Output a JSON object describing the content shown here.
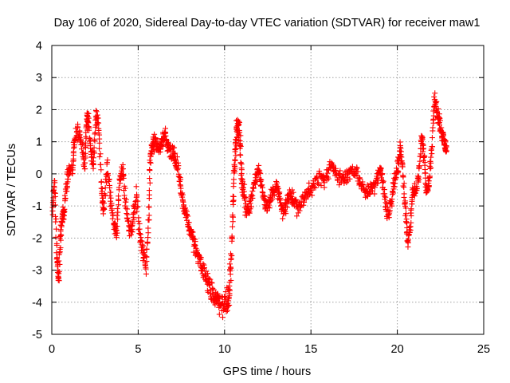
{
  "chart_data": {
    "type": "scatter",
    "title": "Day 106 of 2020, Sidereal Day-to-day VTEC variation (SDTVAR) for receiver maw1",
    "xlabel": "GPS time / hours",
    "ylabel": "SDTVAR / TECUs",
    "xlim": [
      0,
      25
    ],
    "ylim": [
      -5,
      4
    ],
    "xticks": [
      "0",
      "5",
      "10",
      "15",
      "20",
      "25"
    ],
    "yticks": [
      "-5",
      "-4",
      "-3",
      "-2",
      "-1",
      "0",
      "1",
      "2",
      "3",
      "4"
    ],
    "grid": true,
    "marker": "+",
    "color": "#ff0000",
    "series": [
      {
        "name": "SDTVAR",
        "trend": [
          [
            0.05,
            -1.2
          ],
          [
            0.15,
            -0.2
          ],
          [
            0.3,
            -2.6
          ],
          [
            0.4,
            -3.3
          ],
          [
            0.5,
            -2.0
          ],
          [
            0.6,
            -1.3
          ],
          [
            0.7,
            -1.2
          ],
          [
            0.85,
            -0.4
          ],
          [
            1.0,
            0.2
          ],
          [
            1.2,
            0.1
          ],
          [
            1.3,
            1.0
          ],
          [
            1.5,
            1.4
          ],
          [
            1.7,
            1.0
          ],
          [
            1.9,
            0.2
          ],
          [
            2.0,
            1.5
          ],
          [
            2.1,
            1.8
          ],
          [
            2.25,
            0.8
          ],
          [
            2.4,
            0.3
          ],
          [
            2.55,
            1.8
          ],
          [
            2.7,
            1.5
          ],
          [
            2.9,
            -0.5
          ],
          [
            3.0,
            -1.2
          ],
          [
            3.2,
            0.3
          ],
          [
            3.4,
            -0.8
          ],
          [
            3.6,
            -1.5
          ],
          [
            3.75,
            -1.9
          ],
          [
            3.9,
            -0.3
          ],
          [
            4.1,
            0.2
          ],
          [
            4.3,
            -1.0
          ],
          [
            4.5,
            -1.8
          ],
          [
            4.7,
            -1.5
          ],
          [
            4.9,
            -0.6
          ],
          [
            5.1,
            -2.0
          ],
          [
            5.3,
            -2.5
          ],
          [
            5.45,
            -2.9
          ],
          [
            5.6,
            -1.5
          ],
          [
            5.7,
            0.5
          ],
          [
            5.85,
            0.9
          ],
          [
            6.0,
            1.0
          ],
          [
            6.2,
            0.7
          ],
          [
            6.4,
            1.0
          ],
          [
            6.55,
            1.3
          ],
          [
            6.7,
            0.8
          ],
          [
            6.9,
            0.7
          ],
          [
            7.1,
            0.5
          ],
          [
            7.3,
            0.2
          ],
          [
            7.5,
            -0.6
          ],
          [
            7.7,
            -1.2
          ],
          [
            7.9,
            -1.5
          ],
          [
            8.1,
            -1.9
          ],
          [
            8.3,
            -2.3
          ],
          [
            8.5,
            -2.6
          ],
          [
            8.7,
            -2.9
          ],
          [
            8.9,
            -3.2
          ],
          [
            9.1,
            -3.5
          ],
          [
            9.3,
            -3.7
          ],
          [
            9.5,
            -3.9
          ],
          [
            9.7,
            -4.0
          ],
          [
            9.9,
            -4.0
          ],
          [
            10.1,
            -4.05
          ],
          [
            10.25,
            -3.8
          ],
          [
            10.35,
            -3.0
          ],
          [
            10.45,
            -1.5
          ],
          [
            10.55,
            0.0
          ],
          [
            10.65,
            1.0
          ],
          [
            10.75,
            1.5
          ],
          [
            10.85,
            1.4
          ],
          [
            10.95,
            0.5
          ],
          [
            11.05,
            -0.5
          ],
          [
            11.2,
            -1.0
          ],
          [
            11.4,
            -1.2
          ],
          [
            11.6,
            -0.6
          ],
          [
            11.8,
            -0.1
          ],
          [
            12.0,
            0.1
          ],
          [
            12.2,
            -0.5
          ],
          [
            12.4,
            -1.1
          ],
          [
            12.6,
            -0.9
          ],
          [
            12.8,
            -0.5
          ],
          [
            13.0,
            -0.4
          ],
          [
            13.2,
            -0.8
          ],
          [
            13.4,
            -1.2
          ],
          [
            13.6,
            -0.9
          ],
          [
            13.8,
            -0.5
          ],
          [
            14.0,
            -0.9
          ],
          [
            14.3,
            -1.1
          ],
          [
            14.6,
            -0.8
          ],
          [
            14.9,
            -0.5
          ],
          [
            15.2,
            -0.3
          ],
          [
            15.5,
            -0.1
          ],
          [
            15.8,
            -0.2
          ],
          [
            16.1,
            0.2
          ],
          [
            16.4,
            0.1
          ],
          [
            16.7,
            -0.1
          ],
          [
            17.0,
            -0.2
          ],
          [
            17.3,
            0.1
          ],
          [
            17.6,
            0.1
          ],
          [
            17.9,
            -0.3
          ],
          [
            18.2,
            -0.6
          ],
          [
            18.5,
            -0.5
          ],
          [
            18.8,
            -0.2
          ],
          [
            19.0,
            0.2
          ],
          [
            19.2,
            -0.4
          ],
          [
            19.4,
            -1.3
          ],
          [
            19.6,
            -1.0
          ],
          [
            19.8,
            -0.3
          ],
          [
            20.0,
            0.1
          ],
          [
            20.15,
            0.8
          ],
          [
            20.3,
            0.3
          ],
          [
            20.45,
            -1.0
          ],
          [
            20.6,
            -2.2
          ],
          [
            20.75,
            -1.6
          ],
          [
            20.9,
            -0.5
          ],
          [
            21.05,
            -0.6
          ],
          [
            21.25,
            -0.1
          ],
          [
            21.4,
            1.2
          ],
          [
            21.55,
            0.6
          ],
          [
            21.7,
            -0.5
          ],
          [
            21.85,
            -0.2
          ],
          [
            22.0,
            0.8
          ],
          [
            22.15,
            2.4
          ],
          [
            22.3,
            2.0
          ],
          [
            22.45,
            1.6
          ],
          [
            22.6,
            1.2
          ],
          [
            22.75,
            0.9
          ],
          [
            22.85,
            0.8
          ]
        ]
      }
    ]
  }
}
